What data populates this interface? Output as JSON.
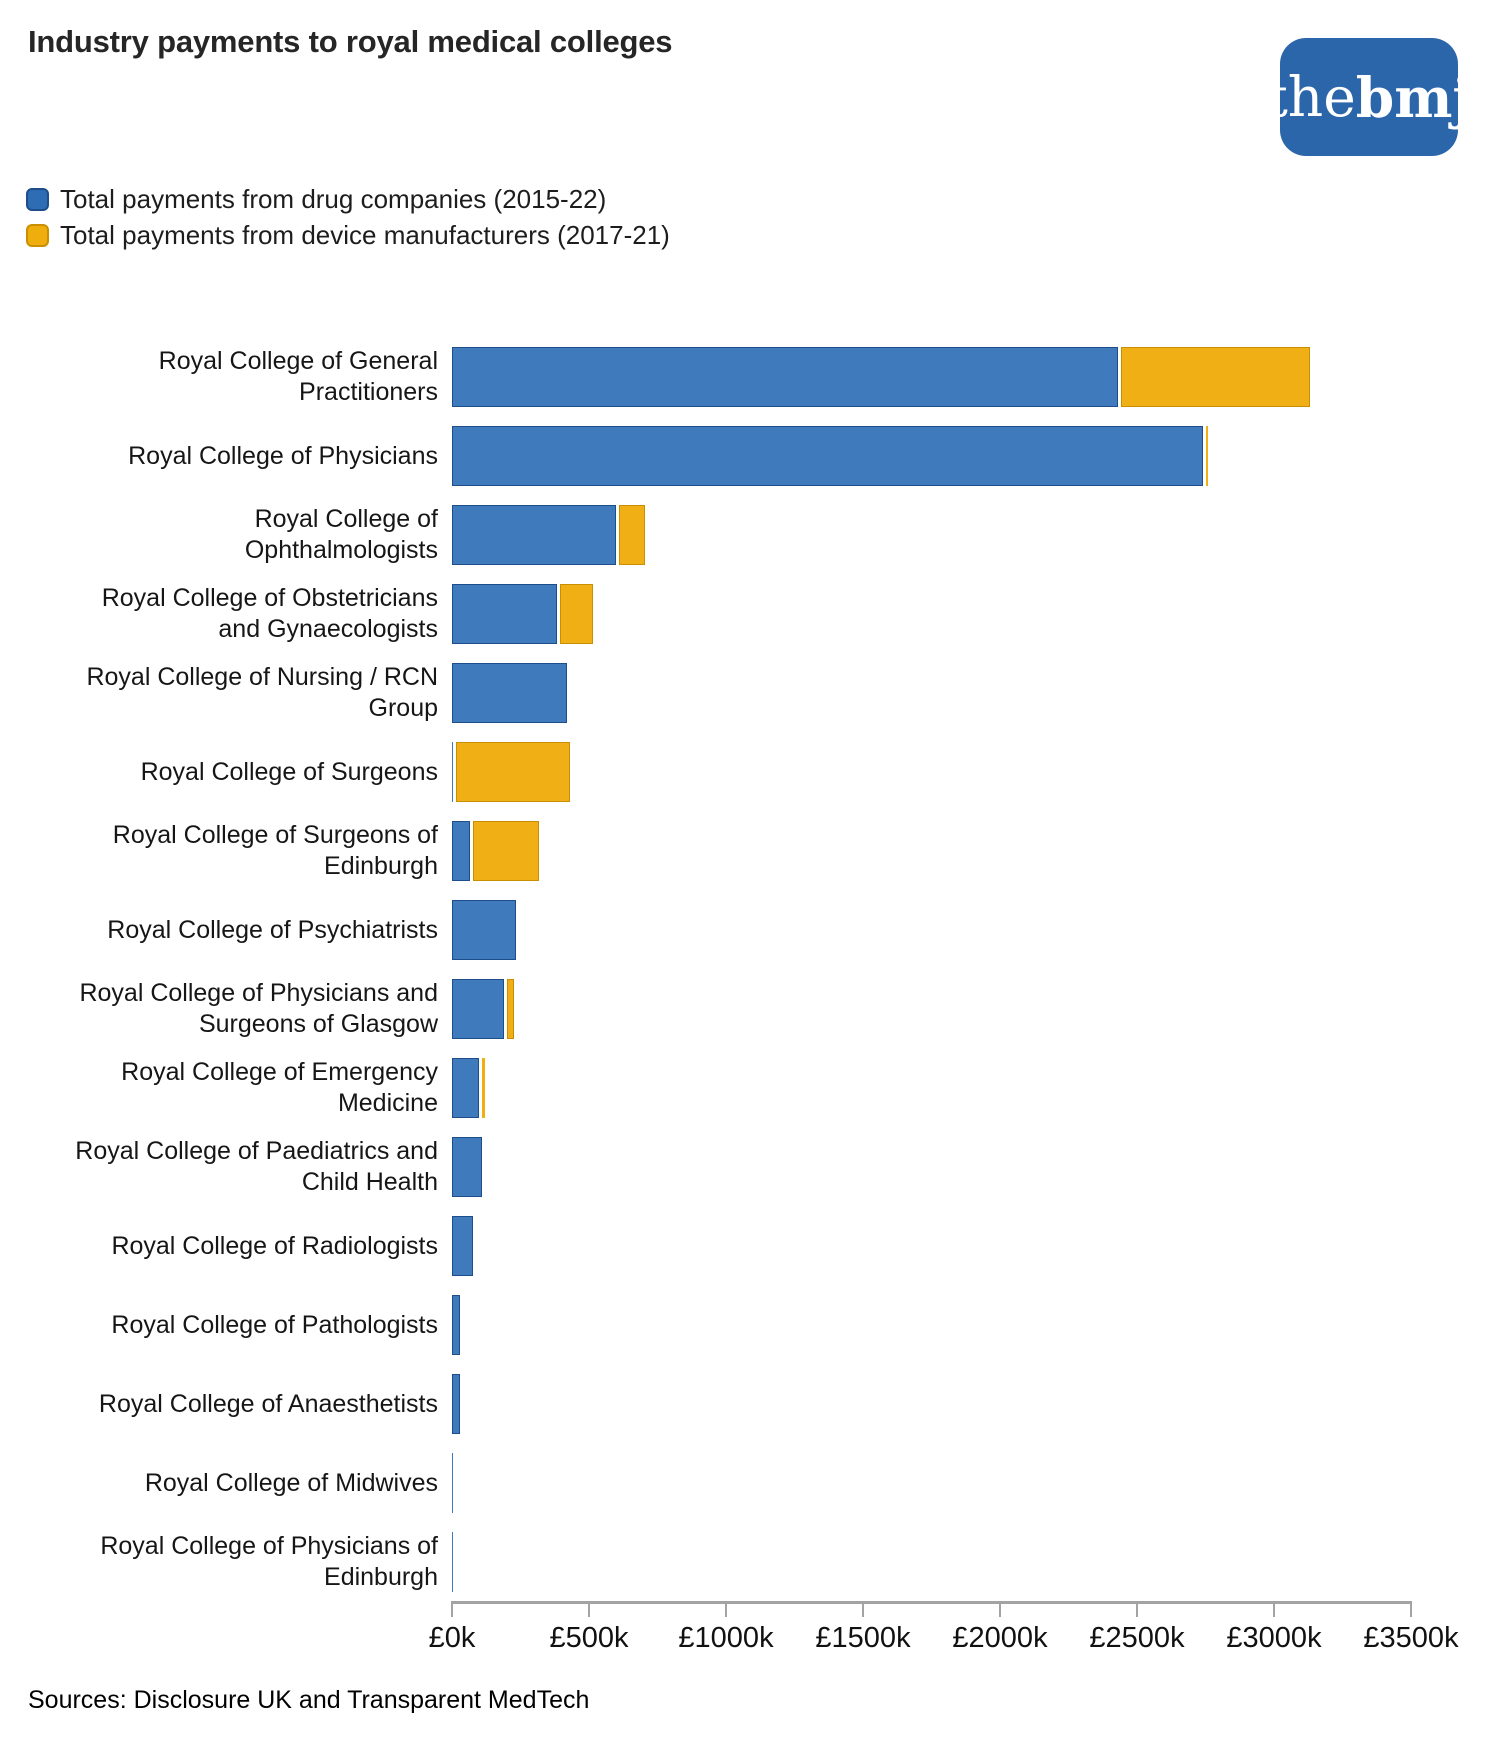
{
  "header": {
    "title": "Industry payments to royal medical colleges",
    "logo": {
      "prefix": "the",
      "suffix": "bmj"
    }
  },
  "legend": {
    "position": "top-left",
    "items": [
      {
        "label": "Total payments from drug companies (2015-22)"
      },
      {
        "label": "Total payments from device manufacturers (2017-21)"
      }
    ]
  },
  "colors": {
    "drug_fill": "#3E7ABC",
    "drug_border": "#1D4E89",
    "device_fill": "#EFAF15",
    "device_border": "#C98F00",
    "legend_drug": "#2E6DB4",
    "legend_device": "#EFAD0E",
    "logo_background": "#2B66AB",
    "axis": "#A3A3A3"
  },
  "chart_data": {
    "type": "bar",
    "orientation": "horizontal",
    "stacked": true,
    "grid": false,
    "unit": "thousand GBP (£k)",
    "xlim": [
      0,
      3500
    ],
    "xlabel": "",
    "ylabel": "",
    "x_ticks": [
      {
        "value": 0,
        "label": "£0k"
      },
      {
        "value": 500,
        "label": "£500k"
      },
      {
        "value": 1000,
        "label": "£1000k"
      },
      {
        "value": 1500,
        "label": "£1500k"
      },
      {
        "value": 2000,
        "label": "£2000k"
      },
      {
        "value": 2500,
        "label": "£2500k"
      },
      {
        "value": 3000,
        "label": "£3000k"
      },
      {
        "value": 3500,
        "label": "£3500k"
      }
    ],
    "series_names": [
      "Total payments from drug companies (2015-22)",
      "Total payments from device manufacturers (2017-21)"
    ],
    "rows": [
      {
        "label_lines": [
          "Royal College of General",
          "Practitioners"
        ],
        "drug_k": 2430,
        "device_k": 690
      },
      {
        "label_lines": [
          "Royal College of Physicians"
        ],
        "drug_k": 2740,
        "device_k": 10
      },
      {
        "label_lines": [
          "Royal College of",
          "Ophthalmologists"
        ],
        "drug_k": 600,
        "device_k": 95
      },
      {
        "label_lines": [
          "Royal College of Obstetricians",
          "and Gynaecologists"
        ],
        "drug_k": 385,
        "device_k": 120
      },
      {
        "label_lines": [
          "Royal College of Nursing / RCN",
          "Group"
        ],
        "drug_k": 420,
        "device_k": 0
      },
      {
        "label_lines": [
          "Royal College of Surgeons"
        ],
        "drug_k": 5,
        "device_k": 415
      },
      {
        "label_lines": [
          "Royal College of Surgeons of",
          "Edinburgh"
        ],
        "drug_k": 65,
        "device_k": 240
      },
      {
        "label_lines": [
          "Royal College of Psychiatrists"
        ],
        "drug_k": 235,
        "device_k": 0
      },
      {
        "label_lines": [
          "Royal College of Physicians and",
          "Surgeons of Glasgow"
        ],
        "drug_k": 190,
        "device_k": 25
      },
      {
        "label_lines": [
          "Royal College of Emergency",
          "Medicine"
        ],
        "drug_k": 100,
        "device_k": 8
      },
      {
        "label_lines": [
          "Royal College of Paediatrics and",
          "Child Health"
        ],
        "drug_k": 110,
        "device_k": 0
      },
      {
        "label_lines": [
          "Royal College of Radiologists"
        ],
        "drug_k": 75,
        "device_k": 0
      },
      {
        "label_lines": [
          "Royal College of Pathologists"
        ],
        "drug_k": 28,
        "device_k": 0
      },
      {
        "label_lines": [
          "Royal College of Anaesthetists"
        ],
        "drug_k": 30,
        "device_k": 0
      },
      {
        "label_lines": [
          "Royal College of Midwives"
        ],
        "drug_k": 5,
        "device_k": 0
      },
      {
        "label_lines": [
          "Royal College of Physicians of",
          "Edinburgh"
        ],
        "drug_k": 2,
        "device_k": 0
      }
    ]
  },
  "footer": {
    "sources": "Sources: Disclosure UK and Transparent MedTech"
  }
}
